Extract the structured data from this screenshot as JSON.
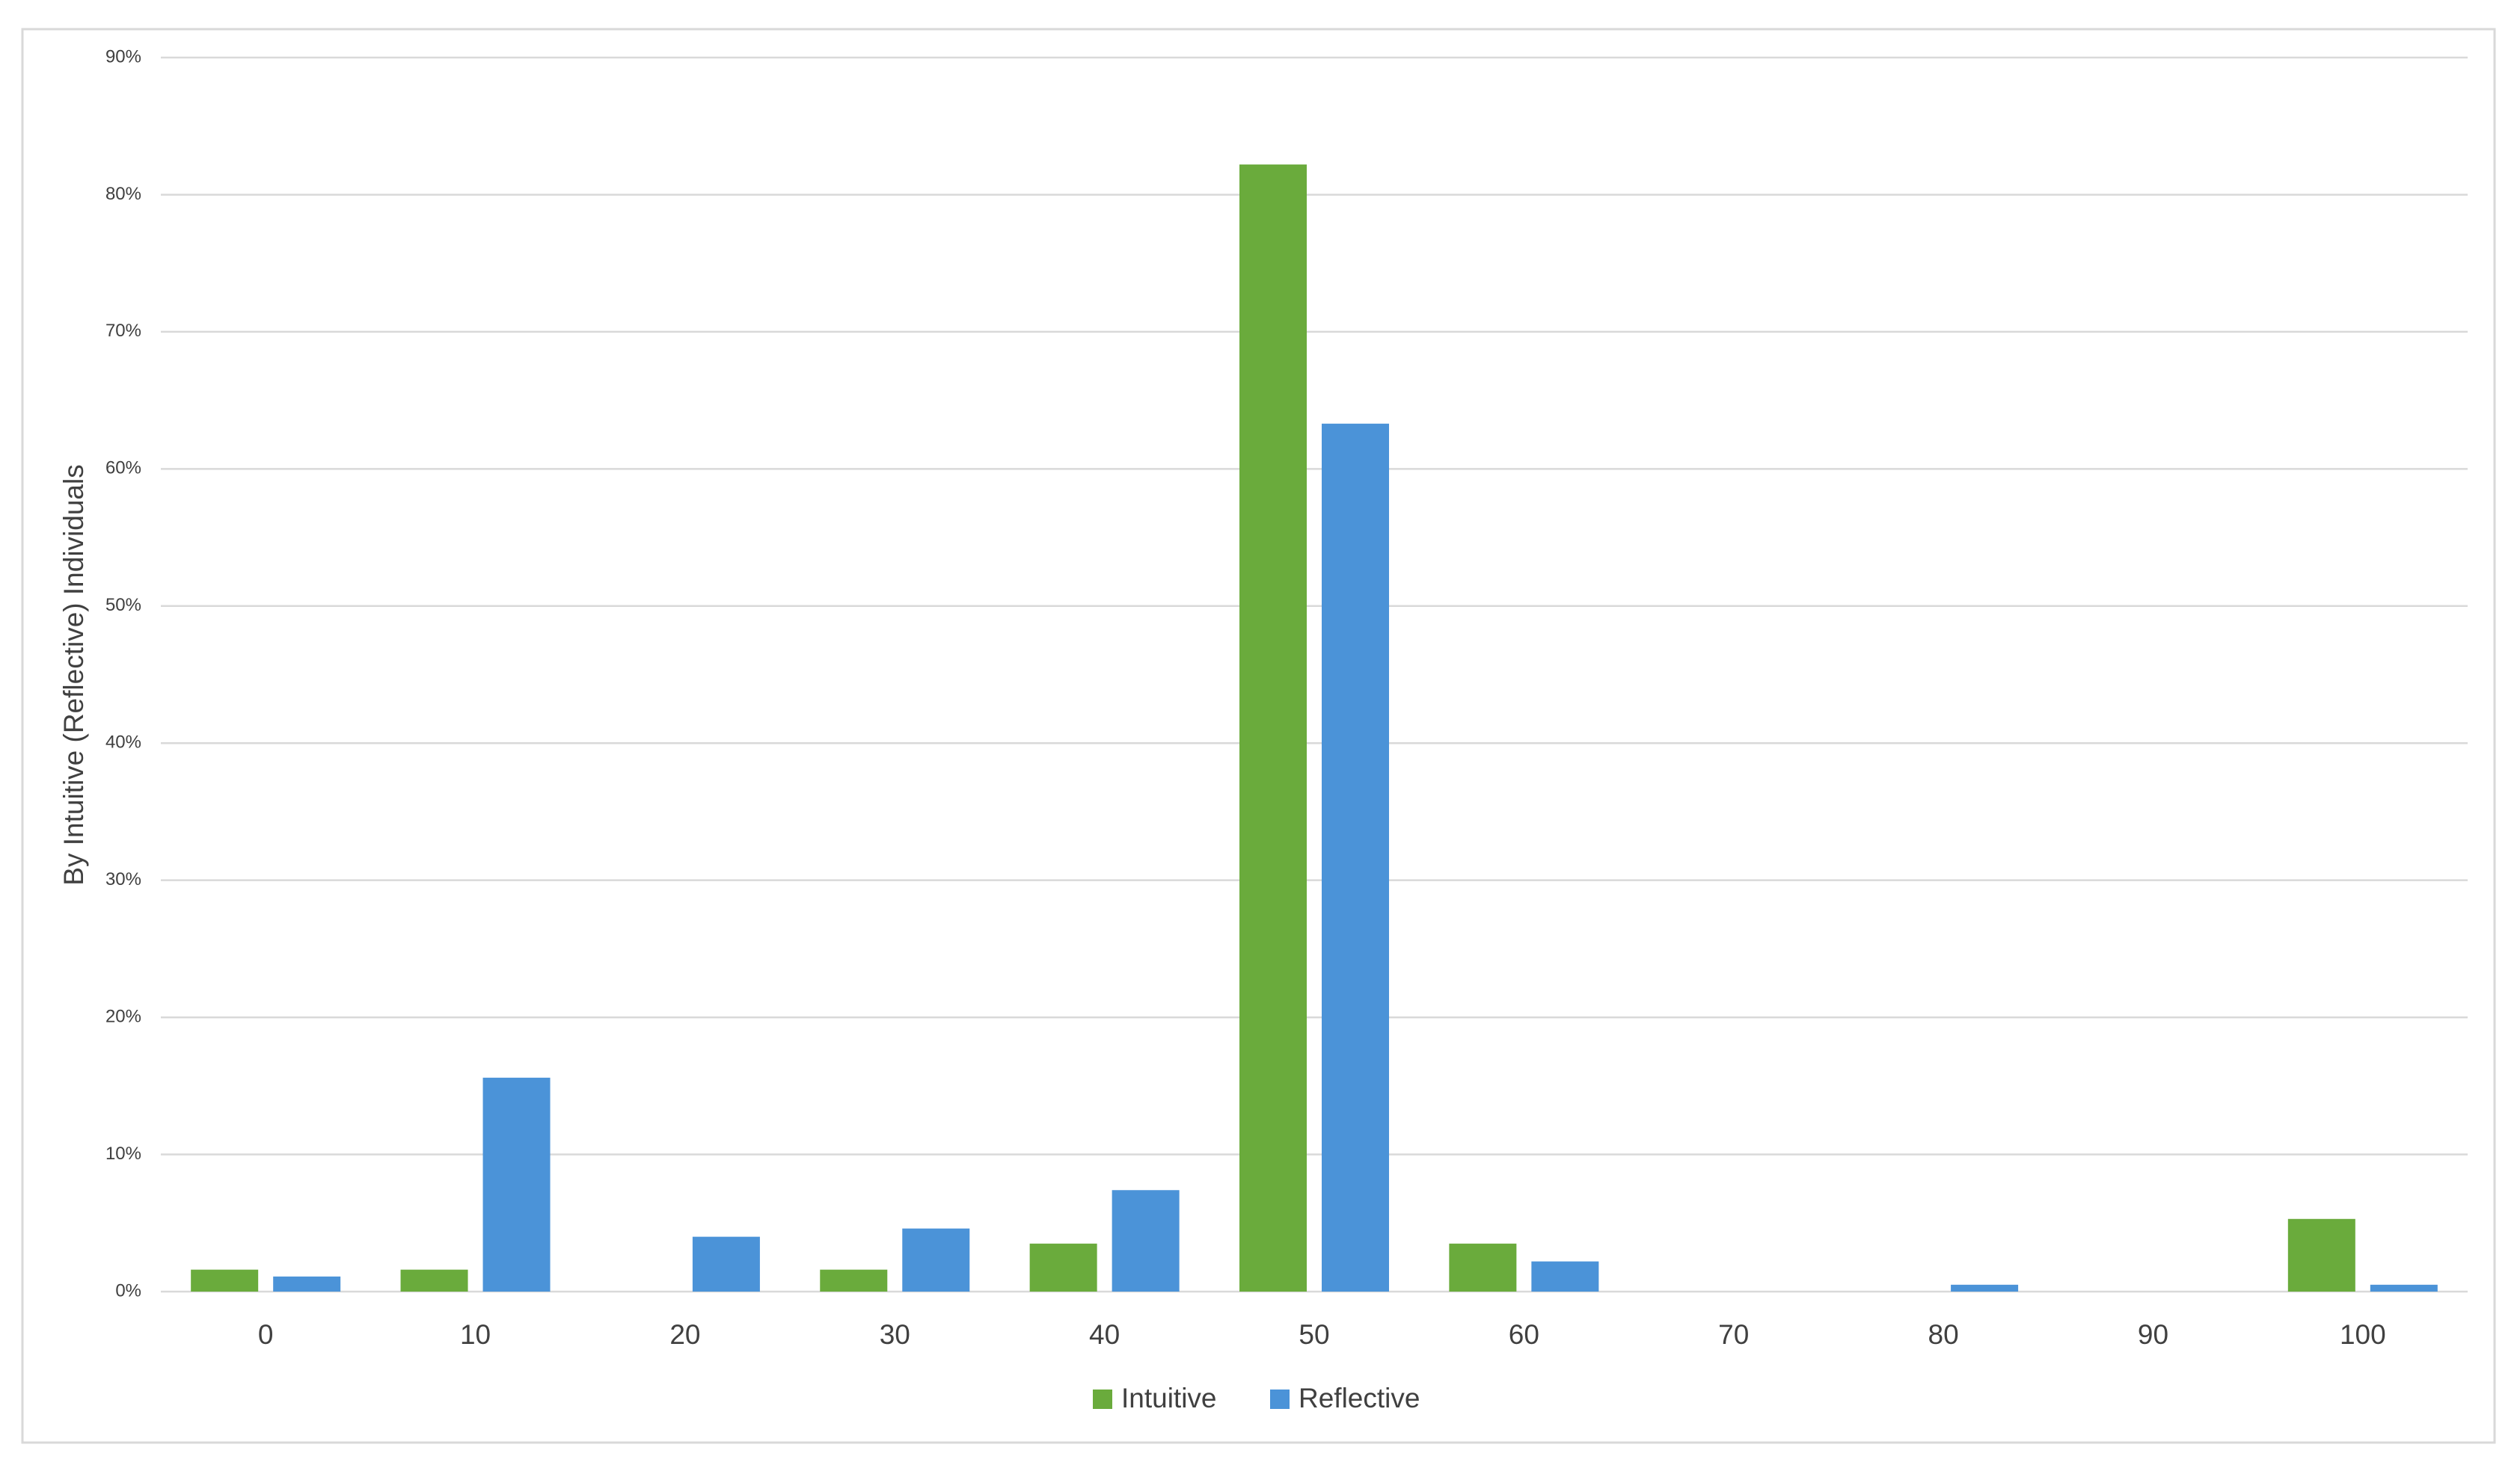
{
  "chart_data": {
    "type": "bar",
    "y_label": "By Intuitive (Reflective) Individuals",
    "categories": [
      "0",
      "10",
      "20",
      "30",
      "40",
      "50",
      "60",
      "70",
      "80",
      "90",
      "100"
    ],
    "series": [
      {
        "name": "Intuitive",
        "color": "#6aab3c",
        "values": [
          1.6,
          1.6,
          0,
          1.6,
          3.5,
          82.2,
          3.5,
          0,
          0,
          0,
          5.3
        ]
      },
      {
        "name": "Reflective",
        "color": "#4b93d8",
        "values": [
          1.1,
          15.6,
          4.0,
          4.6,
          7.4,
          63.3,
          2.2,
          0,
          0.5,
          0,
          0.5
        ]
      }
    ],
    "ylim": [
      0,
      90
    ],
    "yticks": [
      {
        "value": 0,
        "label": "0%"
      },
      {
        "value": 10,
        "label": "10%"
      },
      {
        "value": 20,
        "label": "20%"
      },
      {
        "value": 30,
        "label": "30%"
      },
      {
        "value": 40,
        "label": "40%"
      },
      {
        "value": 50,
        "label": "50%"
      },
      {
        "value": 60,
        "label": "60%"
      },
      {
        "value": 70,
        "label": "70%"
      },
      {
        "value": 80,
        "label": "80%"
      },
      {
        "value": 90,
        "label": "90%"
      }
    ],
    "grid": true,
    "legend": "bottom"
  }
}
